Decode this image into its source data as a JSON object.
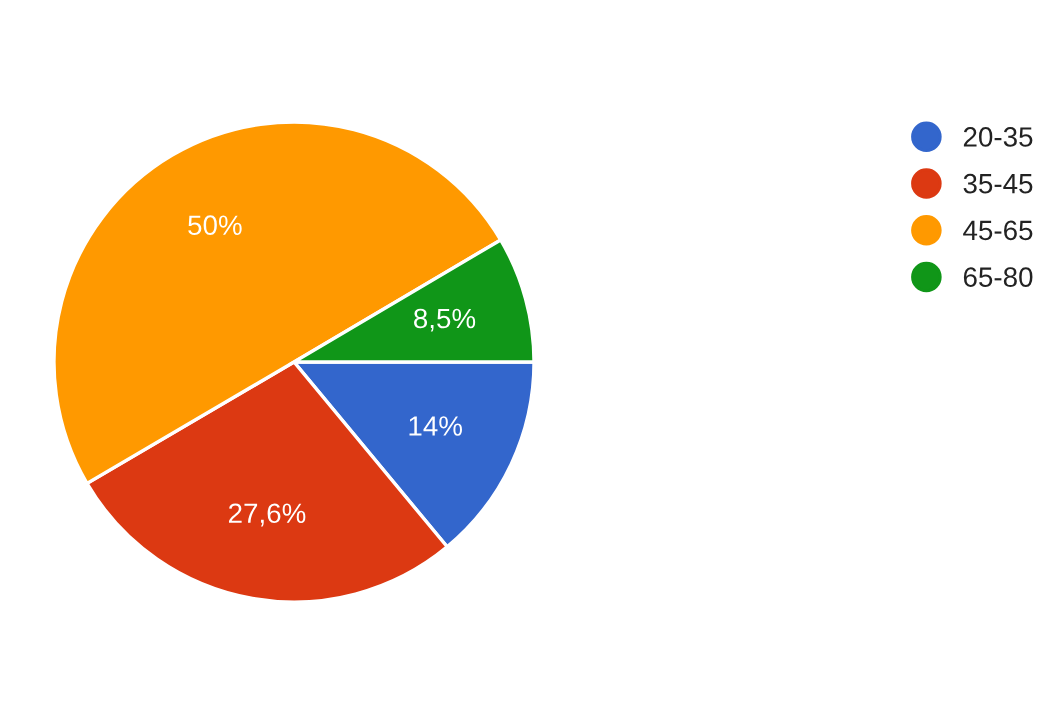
{
  "chart_data": {
    "type": "pie",
    "categories": [
      "20-35",
      "35-45",
      "45-65",
      "65-80"
    ],
    "values": [
      14,
      27.6,
      50,
      8.5
    ],
    "colors": [
      "#3366cc",
      "#dc3912",
      "#ff9900",
      "#109618"
    ],
    "value_labels": [
      "14%",
      "27,6%",
      "50%",
      "8,5%"
    ],
    "legend": "top right"
  }
}
